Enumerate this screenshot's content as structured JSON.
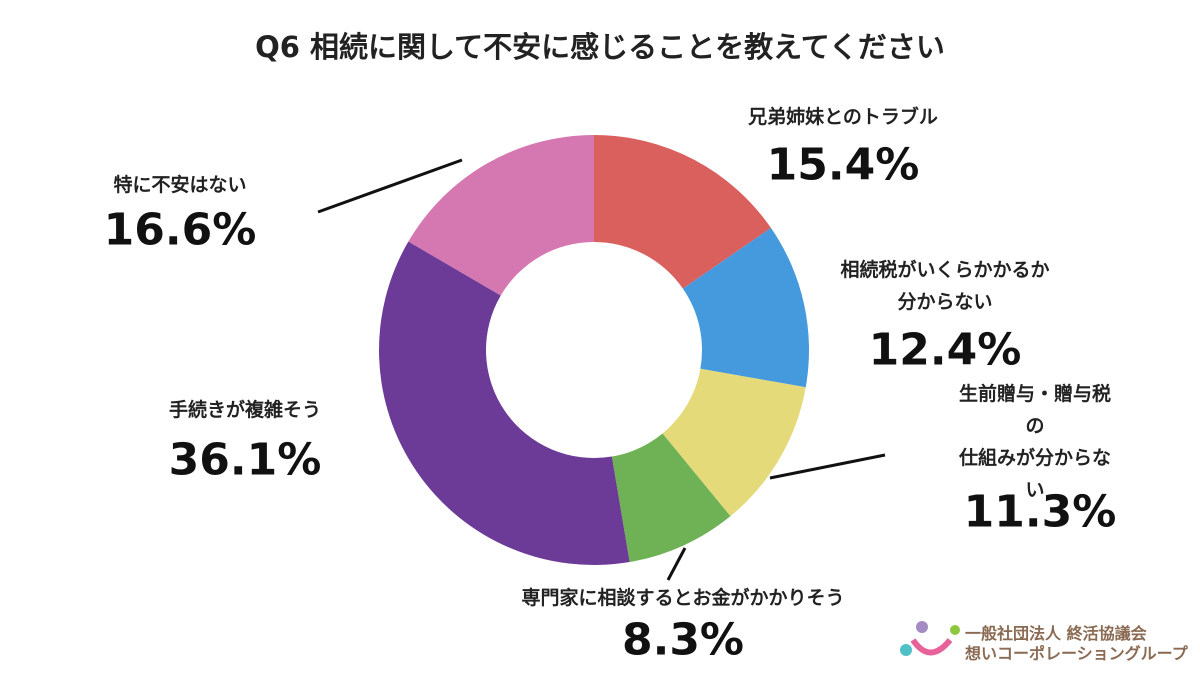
{
  "chart_data": {
    "type": "pie",
    "donut": true,
    "title": "Q6 相続に関して不安に感じることを教えてください",
    "categories": [
      "兄弟姉妹とのトラブル",
      "相続税がいくらかかるか\n分からない",
      "生前贈与・贈与税の\n仕組みが分からない",
      "専門家に相談するとお金がかかりそう",
      "手続きが複雑そう",
      "特に不安はない"
    ],
    "values": [
      15.4,
      12.4,
      11.3,
      8.3,
      36.1,
      16.6
    ],
    "value_labels": [
      "15.4%",
      "12.4%",
      "11.3%",
      "8.3%",
      "36.1%",
      "16.6%"
    ],
    "colors": [
      "#d9605d",
      "#4599dd",
      "#e5da7a",
      "#6fb155",
      "#6c3b97",
      "#d578b1"
    ]
  },
  "logo": {
    "line1": "一般社団法人 終活協議会",
    "line2": "想いコーポレーショングループ"
  }
}
